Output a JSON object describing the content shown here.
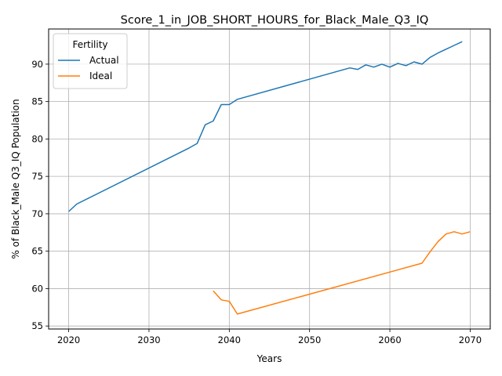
{
  "chart_data": {
    "type": "line",
    "title": "Score_1_in_JOB_SHORT_HOURS_for_Black_Male_Q3_IQ",
    "xlabel": "Years",
    "ylabel": "% of Black_Male Q3_IQ Population",
    "xlim": [
      2017.5,
      2072.5
    ],
    "ylim": [
      54.6,
      94.7
    ],
    "xticks": [
      2020,
      2030,
      2040,
      2050,
      2060,
      2070
    ],
    "yticks": [
      55,
      60,
      65,
      70,
      75,
      80,
      85,
      90
    ],
    "grid": true,
    "legend": {
      "title": "Fertility",
      "placement": "upper-left"
    },
    "series": [
      {
        "name": "Actual",
        "color": "#1f77b4",
        "x": [
          2020,
          2021,
          2035,
          2036,
          2037,
          2038,
          2039,
          2040,
          2041,
          2055,
          2056,
          2057,
          2058,
          2059,
          2060,
          2061,
          2062,
          2063,
          2064,
          2065,
          2066,
          2067,
          2068,
          2069
        ],
        "y": [
          70.3,
          71.3,
          78.8,
          79.4,
          81.9,
          82.4,
          84.6,
          84.6,
          85.3,
          89.5,
          89.3,
          89.9,
          89.6,
          90.0,
          89.6,
          90.1,
          89.8,
          90.3,
          90.0,
          90.9,
          91.5,
          92.0,
          92.5,
          93.0
        ]
      },
      {
        "name": "Ideal",
        "color": "#ff7f0e",
        "x": [
          2038,
          2039,
          2040,
          2041,
          2064,
          2065,
          2066,
          2067,
          2068,
          2069,
          2070
        ],
        "y": [
          59.7,
          58.5,
          58.3,
          56.6,
          63.4,
          64.9,
          66.3,
          67.3,
          67.6,
          67.3,
          67.6
        ]
      }
    ]
  }
}
